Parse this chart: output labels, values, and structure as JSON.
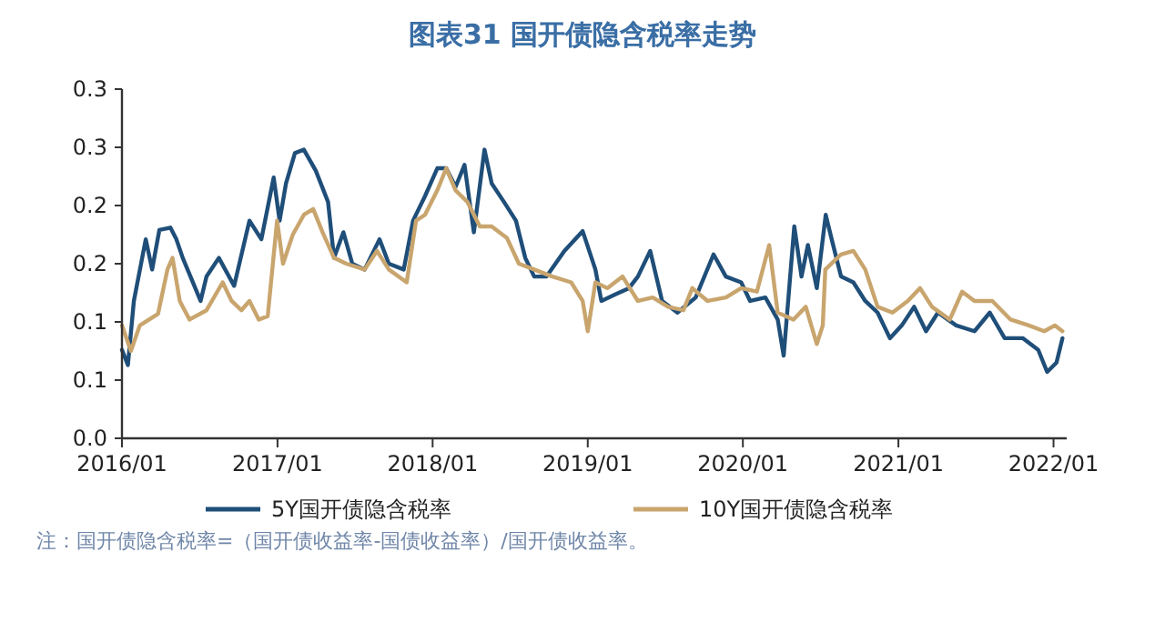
{
  "chart_data": {
    "type": "line",
    "title": "图表31  国开债隐含税率走势",
    "xlim": [
      "2016-01-01",
      "2022-02-01"
    ],
    "xticks": [
      {
        "value": "2016-01-01",
        "label": "2016/01"
      },
      {
        "value": "2017-01-01",
        "label": "2017/01"
      },
      {
        "value": "2018-01-01",
        "label": "2018/01"
      },
      {
        "value": "2019-01-01",
        "label": "2019/01"
      },
      {
        "value": "2020-01-01",
        "label": "2020/01"
      },
      {
        "value": "2021-01-01",
        "label": "2021/01"
      },
      {
        "value": "2022-01-01",
        "label": "2022/01"
      }
    ],
    "ylim": [
      0,
      0.3
    ],
    "yticks": [
      {
        "value": 0,
        "label": "0.0"
      },
      {
        "value": 0.05,
        "label": "0.1"
      },
      {
        "value": 0.1,
        "label": "0.1"
      },
      {
        "value": 0.15,
        "label": "0.2"
      },
      {
        "value": 0.2,
        "label": "0.2"
      },
      {
        "value": 0.25,
        "label": "0.3"
      },
      {
        "value": 0.3,
        "label": "0.3"
      }
    ],
    "grid": false,
    "legend": "bottom",
    "marker": "none",
    "annotations": [
      "注：国开债隐含税率=（国开债收益率-国债收益率）/国开债收益率。"
    ],
    "series": [
      {
        "name": "5Y国开债隐含税率",
        "color": "#1f4e79",
        "x": [
          "2016-01-01",
          "2016-01-15",
          "2016-01-29",
          "2016-02-26",
          "2016-03-12",
          "2016-03-29",
          "2016-04-24",
          "2016-05-08",
          "2016-05-23",
          "2016-07-04",
          "2016-07-18",
          "2016-08-16",
          "2016-09-21",
          "2016-10-27",
          "2016-11-24",
          "2016-12-23",
          "2017-01-06",
          "2017-01-21",
          "2017-02-11",
          "2017-03-04",
          "2017-04-01",
          "2017-04-30",
          "2017-05-14",
          "2017-06-05",
          "2017-06-26",
          "2017-07-25",
          "2017-08-29",
          "2017-09-20",
          "2017-10-25",
          "2017-11-16",
          "2017-12-14",
          "2018-01-12",
          "2018-02-02",
          "2018-02-24",
          "2018-03-17",
          "2018-04-08",
          "2018-05-03",
          "2018-05-20",
          "2018-06-18",
          "2018-07-16",
          "2018-08-07",
          "2018-08-28",
          "2018-09-26",
          "2018-11-07",
          "2018-12-20",
          "2019-01-19",
          "2019-02-02",
          "2019-03-09",
          "2019-04-08",
          "2019-04-29",
          "2019-05-28",
          "2019-06-25",
          "2019-07-31",
          "2019-09-12",
          "2019-10-24",
          "2019-11-22",
          "2019-12-28",
          "2020-01-18",
          "2020-02-23",
          "2020-03-23",
          "2020-04-06",
          "2020-05-01",
          "2020-05-18",
          "2020-06-02",
          "2020-06-23",
          "2020-07-14",
          "2020-07-28",
          "2020-08-19",
          "2020-09-17",
          "2020-10-15",
          "2020-11-13",
          "2020-12-12",
          "2021-01-09",
          "2021-02-07",
          "2021-03-07",
          "2021-04-04",
          "2021-05-17",
          "2021-06-29",
          "2021-08-04",
          "2021-09-08",
          "2021-10-21",
          "2021-11-26",
          "2021-12-17",
          "2022-01-08",
          "2022-01-22"
        ],
        "values": [
          0.076,
          0.063,
          0.118,
          0.171,
          0.145,
          0.179,
          0.181,
          0.171,
          0.155,
          0.118,
          0.139,
          0.155,
          0.131,
          0.187,
          0.171,
          0.224,
          0.187,
          0.219,
          0.245,
          0.248,
          0.23,
          0.203,
          0.155,
          0.177,
          0.15,
          0.145,
          0.171,
          0.15,
          0.145,
          0.187,
          0.208,
          0.232,
          0.232,
          0.216,
          0.235,
          0.177,
          0.248,
          0.219,
          0.203,
          0.187,
          0.155,
          0.139,
          0.139,
          0.161,
          0.178,
          0.145,
          0.118,
          0.124,
          0.129,
          0.139,
          0.161,
          0.118,
          0.108,
          0.121,
          0.158,
          0.139,
          0.134,
          0.118,
          0.121,
          0.102,
          0.071,
          0.182,
          0.139,
          0.166,
          0.129,
          0.192,
          0.171,
          0.139,
          0.134,
          0.118,
          0.108,
          0.086,
          0.097,
          0.113,
          0.092,
          0.108,
          0.097,
          0.092,
          0.108,
          0.086,
          0.086,
          0.076,
          0.057,
          0.065,
          0.086
        ]
      },
      {
        "name": "10Y国开债隐含税率",
        "color": "#c9a56e",
        "x": [
          "2016-01-01",
          "2016-01-22",
          "2016-02-12",
          "2016-03-26",
          "2016-04-17",
          "2016-04-29",
          "2016-05-16",
          "2016-06-08",
          "2016-07-18",
          "2016-08-25",
          "2016-09-15",
          "2016-10-08",
          "2016-10-27",
          "2016-11-18",
          "2016-12-09",
          "2016-12-31",
          "2017-01-14",
          "2017-02-06",
          "2017-03-04",
          "2017-03-26",
          "2017-04-17",
          "2017-05-14",
          "2017-06-12",
          "2017-07-25",
          "2017-08-23",
          "2017-09-20",
          "2017-11-01",
          "2017-11-23",
          "2017-12-14",
          "2018-01-12",
          "2018-02-02",
          "2018-02-24",
          "2018-03-24",
          "2018-04-22",
          "2018-05-20",
          "2018-06-25",
          "2018-07-23",
          "2018-08-28",
          "2018-10-10",
          "2018-11-23",
          "2018-12-20",
          "2019-01-01",
          "2019-01-19",
          "2019-02-16",
          "2019-03-24",
          "2019-04-29",
          "2019-06-03",
          "2019-07-09",
          "2019-08-14",
          "2019-09-04",
          "2019-10-10",
          "2019-11-22",
          "2019-12-28",
          "2020-02-03",
          "2020-03-03",
          "2020-03-23",
          "2020-04-29",
          "2020-05-28",
          "2020-06-23",
          "2020-07-07",
          "2020-07-13",
          "2020-08-19",
          "2020-09-17",
          "2020-10-15",
          "2020-11-13",
          "2020-12-18",
          "2021-01-23",
          "2021-02-21",
          "2021-03-21",
          "2021-05-02",
          "2021-05-31",
          "2021-06-29",
          "2021-08-10",
          "2021-09-22",
          "2021-11-04",
          "2021-12-10",
          "2022-01-04",
          "2022-01-22"
        ],
        "values": [
          0.097,
          0.075,
          0.097,
          0.107,
          0.145,
          0.155,
          0.118,
          0.102,
          0.11,
          0.134,
          0.118,
          0.11,
          0.118,
          0.102,
          0.105,
          0.187,
          0.15,
          0.175,
          0.192,
          0.197,
          0.177,
          0.155,
          0.15,
          0.145,
          0.161,
          0.145,
          0.134,
          0.187,
          0.192,
          0.213,
          0.232,
          0.213,
          0.203,
          0.182,
          0.182,
          0.172,
          0.15,
          0.145,
          0.139,
          0.134,
          0.118,
          0.092,
          0.134,
          0.129,
          0.139,
          0.118,
          0.121,
          0.113,
          0.11,
          0.129,
          0.118,
          0.121,
          0.129,
          0.126,
          0.166,
          0.108,
          0.102,
          0.113,
          0.081,
          0.097,
          0.145,
          0.158,
          0.161,
          0.145,
          0.113,
          0.108,
          0.118,
          0.129,
          0.113,
          0.102,
          0.126,
          0.118,
          0.118,
          0.102,
          0.097,
          0.092,
          0.097,
          0.092
        ]
      }
    ]
  }
}
